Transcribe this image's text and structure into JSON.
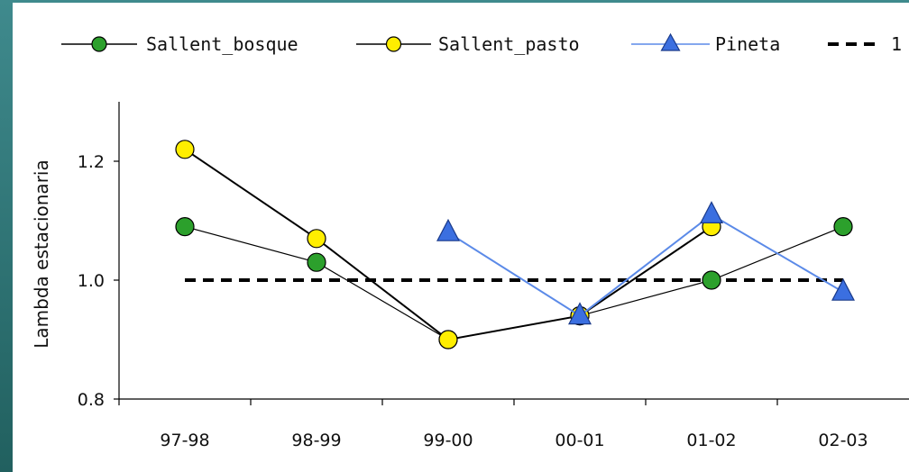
{
  "chart_data": {
    "type": "line",
    "title": "",
    "xlabel": "",
    "ylabel": "Lambda estacionaria",
    "categories": [
      "97-98",
      "98-99",
      "99-00",
      "00-01",
      "01-02",
      "02-03"
    ],
    "ylim": [
      0.8,
      1.3
    ],
    "yticks": [
      "0.8",
      "1.0",
      "1.2"
    ],
    "grid": false,
    "legend_position": "top",
    "series": [
      {
        "name": "Sallent_bosque",
        "values": [
          1.09,
          1.03,
          0.9,
          0.94,
          1.0,
          1.09
        ],
        "marker": "circle",
        "color": "#2ca02c",
        "line_color": "#000000"
      },
      {
        "name": "Sallent_pasto",
        "values": [
          1.22,
          1.07,
          0.9,
          0.94,
          1.09,
          null
        ],
        "marker": "circle",
        "color": "#ffee00",
        "line_color": "#000000"
      },
      {
        "name": "Pineta",
        "values": [
          null,
          null,
          1.08,
          0.94,
          1.11,
          0.98
        ],
        "marker": "triangle",
        "color": "#3b6fe0",
        "line_color": "#5b8ae8"
      },
      {
        "name": "1",
        "values": [
          1.0,
          1.0,
          1.0,
          1.0,
          1.0,
          1.0
        ],
        "marker": "none",
        "color": "#000000",
        "line_style": "dashed"
      }
    ]
  }
}
